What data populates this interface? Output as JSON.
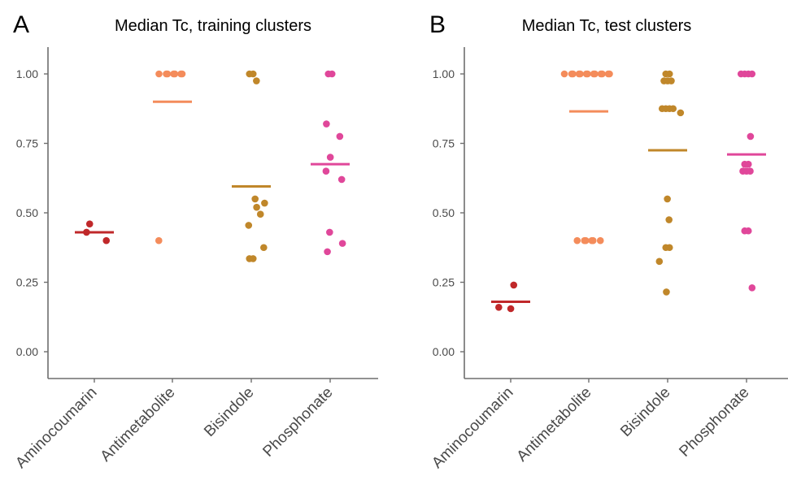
{
  "chart_data": [
    {
      "type": "scatter",
      "panel_label": "A",
      "title": "Median Tc, training clusters",
      "xlabel": "",
      "ylabel": "",
      "categories": [
        "Aminocoumarin",
        "Antimetabolite",
        "Bisindole",
        "Phosphonate"
      ],
      "ylim": [
        -0.1,
        1.1
      ],
      "yticks": [
        0.0,
        0.25,
        0.5,
        0.75,
        1.0
      ],
      "ytick_labels": [
        "0.00",
        "0.25",
        "0.50",
        "0.75",
        "1.00"
      ],
      "grid": false,
      "series": [
        {
          "category": "Aminocoumarin",
          "color": "#c0282a",
          "median": 0.43,
          "points": [
            0.46,
            0.43,
            0.4
          ]
        },
        {
          "category": "Antimetabolite",
          "color": "#f48c5b",
          "median": 0.9,
          "points": [
            1.0,
            1.0,
            1.0,
            1.0,
            1.0,
            1.0,
            1.0,
            0.4
          ]
        },
        {
          "category": "Bisindole",
          "color": "#c0872a",
          "median": 0.595,
          "points": [
            1.0,
            1.0,
            0.975,
            0.55,
            0.535,
            0.52,
            0.495,
            0.455,
            0.375,
            0.335,
            0.335
          ]
        },
        {
          "category": "Phosphonate",
          "color": "#e0479a",
          "median": 0.675,
          "points": [
            1.0,
            1.0,
            0.82,
            0.775,
            0.7,
            0.65,
            0.62,
            0.43,
            0.39,
            0.36
          ]
        }
      ]
    },
    {
      "type": "scatter",
      "panel_label": "B",
      "title": "Median Tc, test clusters",
      "xlabel": "",
      "ylabel": "",
      "categories": [
        "Aminocoumarin",
        "Antimetabolite",
        "Bisindole",
        "Phosphonate"
      ],
      "ylim": [
        -0.1,
        1.1
      ],
      "yticks": [
        0.0,
        0.25,
        0.5,
        0.75,
        1.0
      ],
      "ytick_labels": [
        "0.00",
        "0.25",
        "0.50",
        "0.75",
        "1.00"
      ],
      "grid": false,
      "series": [
        {
          "category": "Aminocoumarin",
          "color": "#c0282a",
          "median": 0.18,
          "points": [
            0.24,
            0.16,
            0.155
          ]
        },
        {
          "category": "Antimetabolite",
          "color": "#f48c5b",
          "median": 0.865,
          "points": [
            1.0,
            1.0,
            1.0,
            1.0,
            1.0,
            1.0,
            1.0,
            1.0,
            1.0,
            1.0,
            1.0,
            1.0,
            1.0,
            0.4,
            0.4,
            0.4,
            0.4,
            0.4,
            0.4
          ]
        },
        {
          "category": "Bisindole",
          "color": "#c0872a",
          "median": 0.725,
          "points": [
            1.0,
            1.0,
            0.975,
            0.975,
            0.975,
            0.875,
            0.875,
            0.875,
            0.875,
            0.86,
            0.55,
            0.475,
            0.375,
            0.375,
            0.325,
            0.215
          ]
        },
        {
          "category": "Phosphonate",
          "color": "#e0479a",
          "median": 0.71,
          "points": [
            1.0,
            1.0,
            1.0,
            1.0,
            0.775,
            0.675,
            0.675,
            0.65,
            0.65,
            0.65,
            0.435,
            0.435,
            0.23
          ]
        }
      ]
    }
  ]
}
